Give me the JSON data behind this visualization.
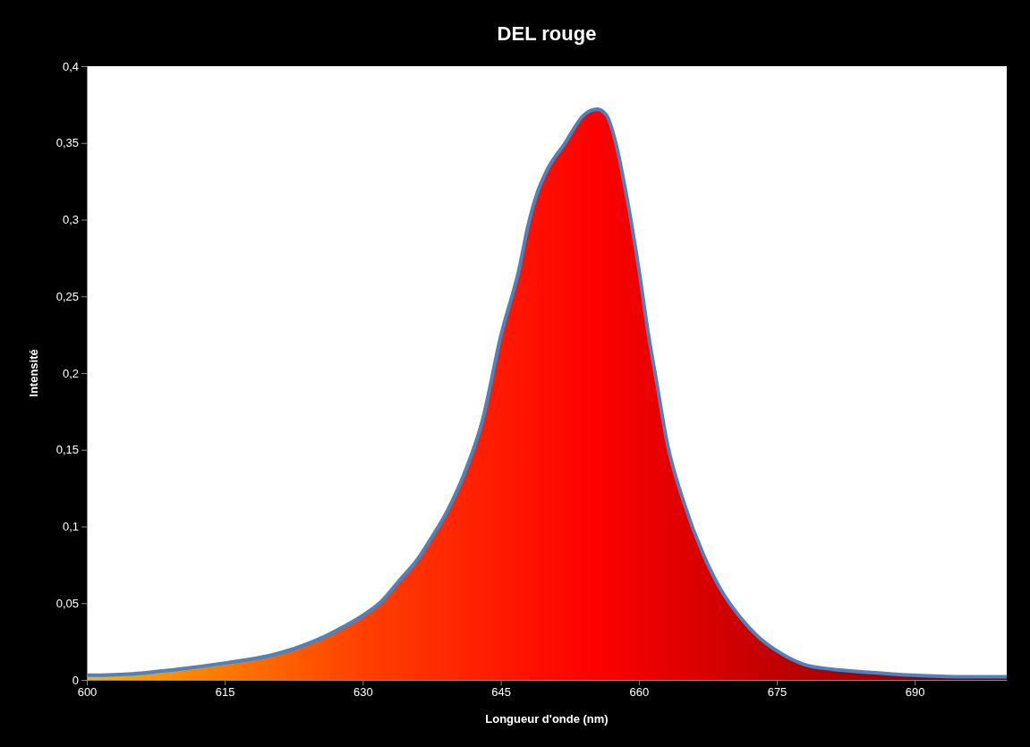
{
  "chart_data": {
    "type": "area",
    "title": "DEL rouge",
    "xlabel": "Longueur d'onde (nm)",
    "ylabel": "Intensité",
    "xlim": [
      600,
      700
    ],
    "xticks": [
      600,
      615,
      630,
      645,
      660,
      675,
      690
    ],
    "ylim": [
      0,
      0.4
    ],
    "yticks": [
      0,
      {
        "value": 0.05,
        "label": "0,05"
      },
      {
        "value": 0.1,
        "label": "0,1"
      },
      {
        "value": 0.15,
        "label": "0,15"
      },
      {
        "value": 0.2,
        "label": "0,2"
      },
      {
        "value": 0.25,
        "label": "0,25"
      },
      {
        "value": 0.3,
        "label": "0,3"
      },
      {
        "value": 0.35,
        "label": "0,35"
      },
      {
        "value": 0.4,
        "label": "0,4"
      }
    ],
    "grid": false,
    "series": [
      {
        "color": "#4f81bd",
        "x": [
          600,
          605,
          610,
          615,
          620,
          625,
          628,
          630,
          632,
          634,
          636,
          637.5,
          639,
          641,
          643,
          645,
          647,
          648,
          649,
          650,
          652,
          654,
          655.5,
          656.5,
          657.5,
          658.5,
          660,
          661,
          662,
          663,
          665,
          667,
          669,
          671,
          673,
          675,
          678,
          681,
          685,
          690,
          695,
          700
        ],
        "values": [
          0.003,
          0.004,
          0.007,
          0.011,
          0.016,
          0.026,
          0.035,
          0.042,
          0.051,
          0.065,
          0.079,
          0.093,
          0.108,
          0.134,
          0.169,
          0.224,
          0.268,
          0.297,
          0.318,
          0.332,
          0.35,
          0.368,
          0.372,
          0.368,
          0.35,
          0.321,
          0.268,
          0.227,
          0.192,
          0.157,
          0.114,
          0.082,
          0.058,
          0.041,
          0.028,
          0.019,
          0.01,
          0.007,
          0.005,
          0.003,
          0.002,
          0.002
        ]
      }
    ]
  }
}
